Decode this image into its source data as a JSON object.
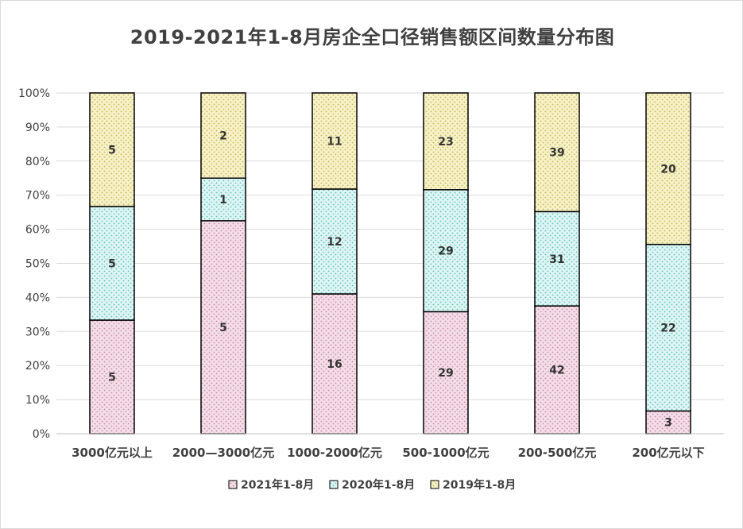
{
  "chart_data": {
    "type": "bar",
    "stacked": "percent",
    "title": "2019-2021年1-8月房企全口径销售额区间数量分布图",
    "xlabel": "",
    "ylabel": "",
    "ylim": [
      0,
      100
    ],
    "y_ticks": [
      "0%",
      "10%",
      "20%",
      "30%",
      "40%",
      "50%",
      "60%",
      "70%",
      "80%",
      "90%",
      "100%"
    ],
    "grid": true,
    "legend_position": "bottom",
    "categories": [
      "3000亿元以上",
      "2000—3000亿元",
      "1000-2000亿元",
      "500-1000亿元",
      "200-500亿元",
      "200亿元以下"
    ],
    "series": [
      {
        "name": "2021年1-8月",
        "values": [
          5,
          5,
          16,
          29,
          42,
          3
        ],
        "color": "#f4dde8",
        "dot_color": "#c48aa4"
      },
      {
        "name": "2020年1-8月",
        "values": [
          5,
          1,
          12,
          29,
          31,
          22
        ],
        "color": "#dff5f3",
        "dot_color": "#54c2bd"
      },
      {
        "name": "2019年1-8月",
        "values": [
          5,
          2,
          11,
          23,
          39,
          20
        ],
        "color": "#f6f1c9",
        "dot_color": "#c8b84a"
      }
    ]
  }
}
